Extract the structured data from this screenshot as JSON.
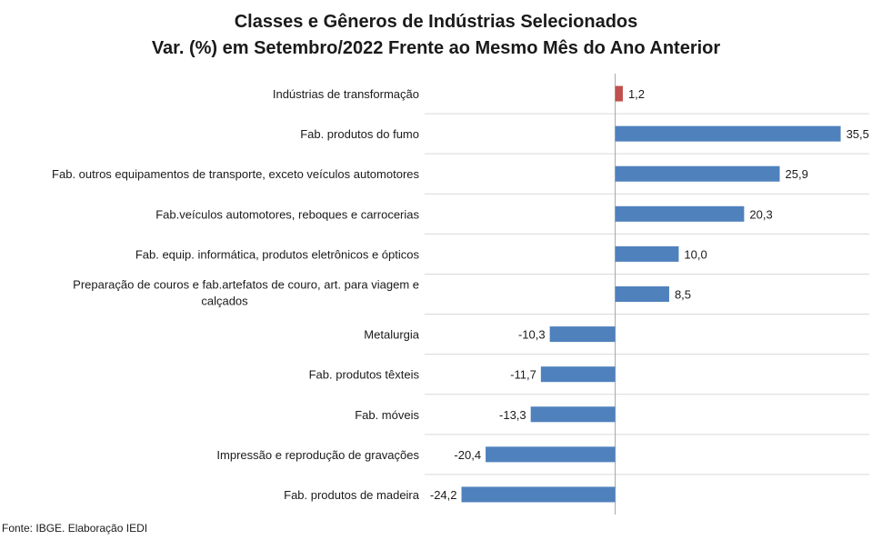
{
  "chart_data": {
    "type": "bar",
    "orientation": "horizontal",
    "title": "Classes e Gêneros de Indústrias Selecionados",
    "subtitle": "Var. (%) em Setembro/2022 Frente ao Mesmo Mês do Ano Anterior",
    "categories": [
      "Indústrias de transformação",
      "Fab. produtos do fumo",
      "Fab. outros equipamentos de transporte, exceto veículos automotores",
      "Fab.veículos automotores, reboques e carrocerias",
      "Fab. equip. informática, produtos eletrônicos e ópticos",
      "Preparação de couros e fab.artefatos de couro, art. para viagem e calçados",
      "Metalurgia",
      "Fab. produtos têxteis",
      "Fab. móveis",
      "Impressão e reprodução de gravações",
      "Fab. produtos de madeira"
    ],
    "category_lines": [
      [
        "Indústrias de transformação"
      ],
      [
        "Fab. produtos do fumo"
      ],
      [
        "Fab. outros equipamentos de transporte, exceto veículos automotores"
      ],
      [
        "Fab.veículos automotores, reboques e carrocerias"
      ],
      [
        "Fab. equip. informática, produtos eletrônicos e ópticos"
      ],
      [
        "Preparação de couros e fab.artefatos de couro, art. para viagem e",
        "calçados"
      ],
      [
        "Metalurgia"
      ],
      [
        "Fab. produtos têxteis"
      ],
      [
        "Fab. móveis"
      ],
      [
        "Impressão e reprodução de gravações"
      ],
      [
        "Fab. produtos de madeira"
      ]
    ],
    "values": [
      1.2,
      35.5,
      25.9,
      20.3,
      10.0,
      8.5,
      -10.3,
      -11.7,
      -13.3,
      -20.4,
      -24.2
    ],
    "value_labels": [
      "1,2",
      "35,5",
      "25,9",
      "20,3",
      "10,0",
      "8,5",
      "-10,3",
      "-11,7",
      "-13,3",
      "-20,4",
      "-24,2"
    ],
    "xlim": [
      -30,
      40
    ],
    "grid": "horizontal separators",
    "colors": {
      "highlight": "#C0504D",
      "default": "#4F81BD",
      "grid": "#D9D9D9",
      "axis": "#A6A6A6"
    },
    "highlight_index": 0
  },
  "source": "Fonte: IBGE. Elaboração IEDI"
}
